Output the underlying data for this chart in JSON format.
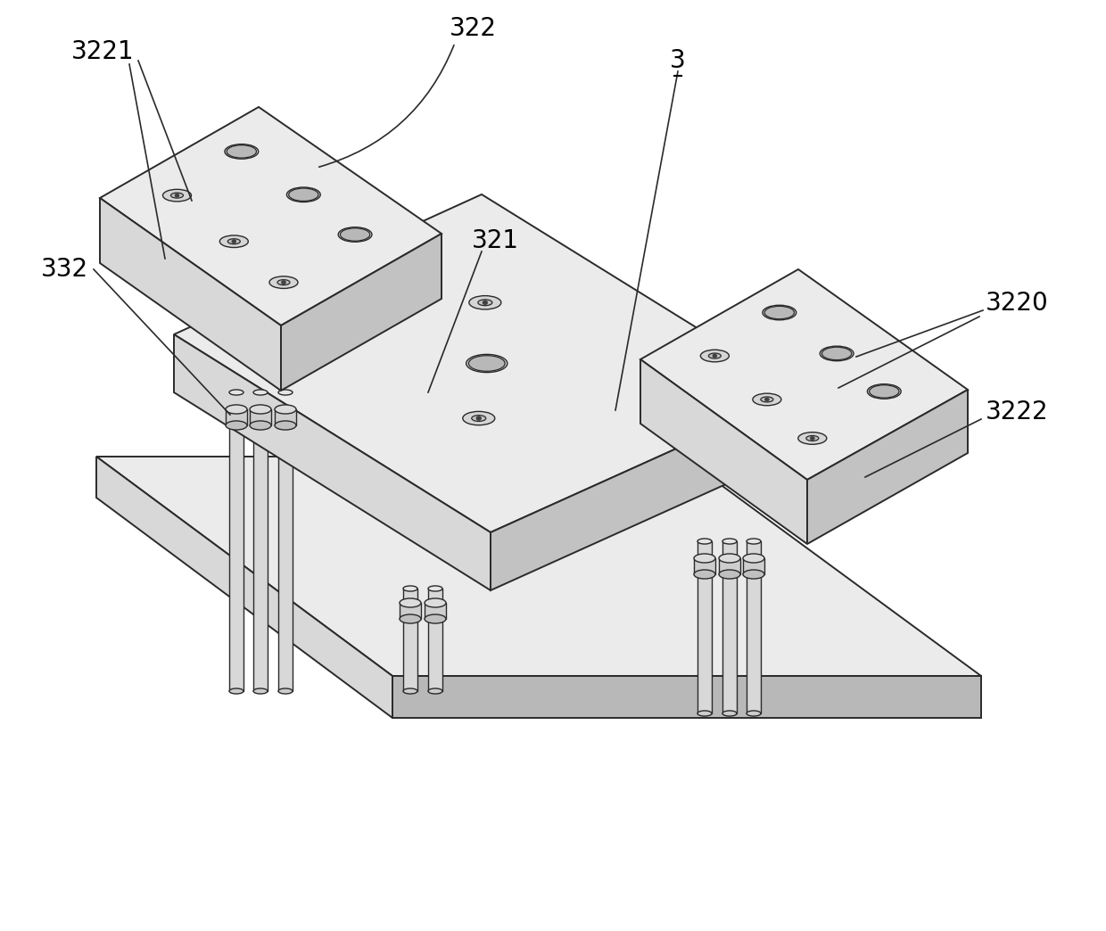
{
  "bg_color": "#ffffff",
  "line_color": "#2a2a2a",
  "fill_light": "#ebebeb",
  "fill_mid": "#d2d2d2",
  "fill_dark": "#b8b8b8",
  "fill_side_l": "#d8d8d8",
  "fill_side_r": "#c2c2c2",
  "label_fontsize": 20,
  "lw": 1.4
}
